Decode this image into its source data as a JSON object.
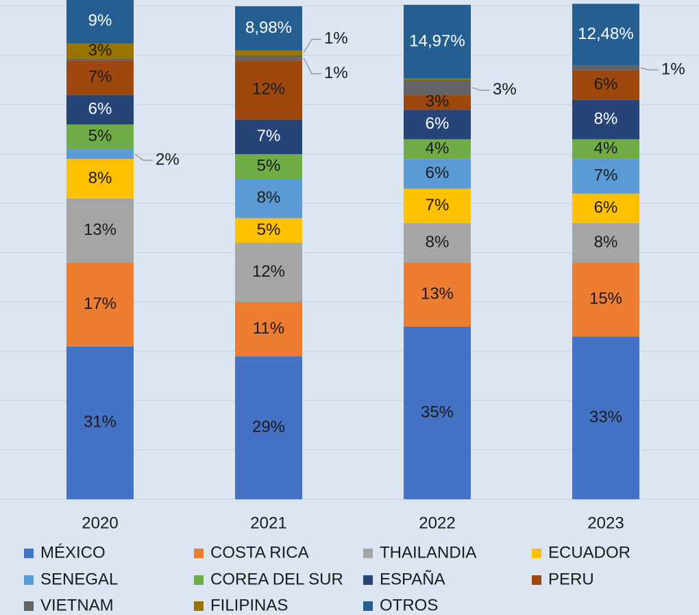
{
  "chart_data": {
    "type": "stacked_bar",
    "categories": [
      "2020",
      "2021",
      "2022",
      "2023"
    ],
    "ylim": [
      0,
      100
    ],
    "yticks": [
      0,
      10,
      20,
      30,
      40,
      50,
      60,
      70,
      80,
      90,
      100
    ],
    "grid": true,
    "legend": "bottom",
    "series": [
      {
        "name": "MÉXICO",
        "color": "#4472c4",
        "values": [
          31,
          29,
          35,
          33
        ],
        "value_labels": [
          "31%",
          "29%",
          "35%",
          "33%"
        ]
      },
      {
        "name": "COSTA RICA",
        "color": "#ed7d31",
        "values": [
          17,
          11,
          13,
          15
        ],
        "value_labels": [
          "17%",
          "11%",
          "13%",
          "15%"
        ]
      },
      {
        "name": "THAILANDIA",
        "color": "#a5a5a5",
        "values": [
          13,
          12,
          8,
          8
        ],
        "value_labels": [
          "13%",
          "12%",
          "8%",
          "8%"
        ]
      },
      {
        "name": "ECUADOR",
        "color": "#ffc000",
        "values": [
          8,
          5,
          7,
          6
        ],
        "value_labels": [
          "8%",
          "5%",
          "7%",
          "6%"
        ]
      },
      {
        "name": "SENEGAL",
        "color": "#5b9bd5",
        "values": [
          2,
          8,
          6,
          7
        ],
        "value_labels": [
          "2%",
          "8%",
          "6%",
          "7%"
        ]
      },
      {
        "name": "COREA DEL SUR",
        "color": "#70ad47",
        "values": [
          5,
          5,
          4,
          4
        ],
        "value_labels": [
          "5%",
          "5%",
          "4%",
          "4%"
        ]
      },
      {
        "name": "ESPAÑA",
        "color": "#264478",
        "values": [
          6,
          7,
          6,
          8
        ],
        "value_labels": [
          "6%",
          "7%",
          "6%",
          "8%"
        ]
      },
      {
        "name": "PERU",
        "color": "#9e480e",
        "values": [
          7,
          12,
          3,
          6
        ],
        "value_labels": [
          "7%",
          "12%",
          "3%",
          "6%"
        ]
      },
      {
        "name": "VIETNAM",
        "color": "#636363",
        "values": [
          0.4,
          1,
          3,
          1
        ],
        "value_labels": [
          null,
          "1%",
          "3%",
          "1%"
        ]
      },
      {
        "name": "FILIPINAS",
        "color": "#997300",
        "values": [
          3,
          1,
          0.3,
          null
        ],
        "value_labels": [
          "3%",
          "1%",
          null,
          null
        ]
      },
      {
        "name": "OTROS",
        "color": "#255e91",
        "values": [
          9,
          8.98,
          14.97,
          12.48
        ],
        "value_labels": [
          "9%",
          "8,98%",
          "14,97%",
          "12,48%"
        ]
      }
    ]
  }
}
